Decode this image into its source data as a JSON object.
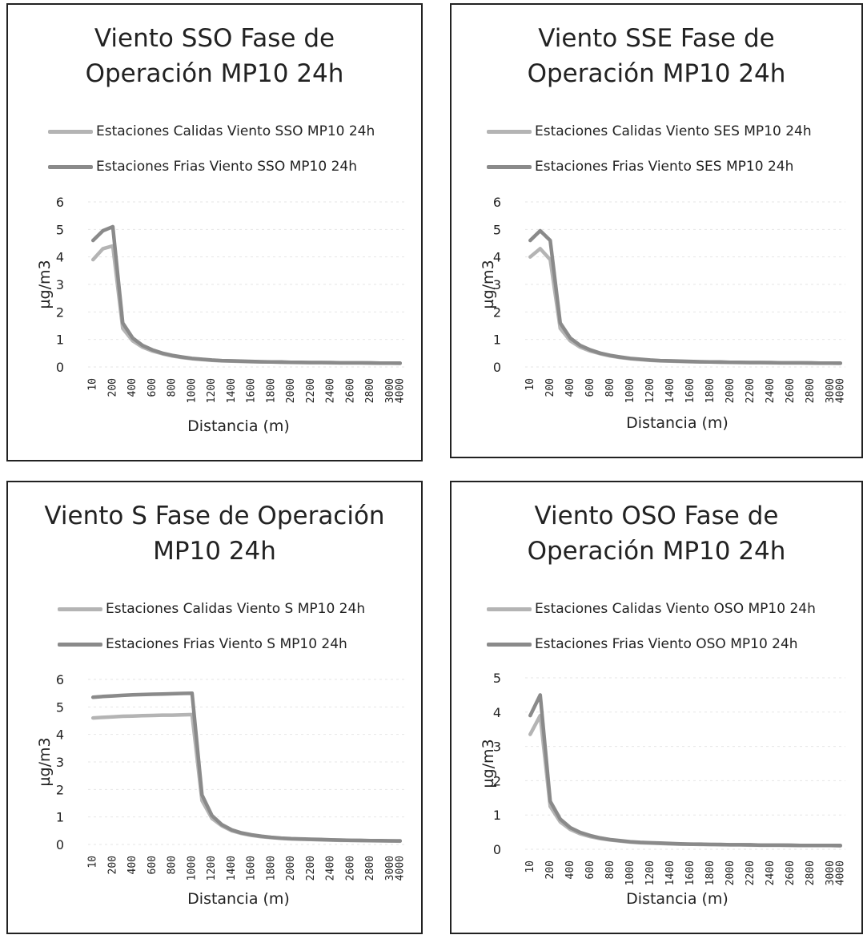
{
  "chart_data": [
    {
      "type": "line",
      "title": "Viento SSO Fase de Operación MP10 24h",
      "xlabel": "Distancia (m)",
      "ylabel": "µg/m3",
      "ylim": [
        0,
        6
      ],
      "yticks": [
        "0",
        "1",
        "2",
        "3",
        "4",
        "5",
        "6"
      ],
      "x": [
        10,
        100,
        200,
        300,
        400,
        500,
        600,
        700,
        800,
        900,
        1000,
        1100,
        1200,
        1300,
        1400,
        1500,
        1600,
        1700,
        1800,
        1900,
        2000,
        2100,
        2200,
        2300,
        2400,
        2500,
        2600,
        2700,
        2800,
        2900,
        3000,
        4000
      ],
      "xticklabels": [
        "10",
        "200",
        "400",
        "600",
        "800",
        "1000",
        "1200",
        "1400",
        "1600",
        "1800",
        "2000",
        "2200",
        "2400",
        "2600",
        "2800",
        "3000",
        "4000"
      ],
      "series": [
        {
          "name": "Estaciones Calidas Viento SSO MP10 24h",
          "color": "#b4b4b4",
          "values": [
            3.9,
            4.3,
            4.4,
            1.4,
            0.95,
            0.72,
            0.58,
            0.48,
            0.4,
            0.34,
            0.3,
            0.27,
            0.24,
            0.22,
            0.21,
            0.2,
            0.19,
            0.18,
            0.18,
            0.17,
            0.17,
            0.16,
            0.16,
            0.16,
            0.15,
            0.15,
            0.15,
            0.15,
            0.14,
            0.14,
            0.14,
            0.13
          ]
        },
        {
          "name": "Estaciones Frias Viento SSO MP10 24h",
          "color": "#8a8a8a",
          "values": [
            4.6,
            4.95,
            5.1,
            1.6,
            1.05,
            0.78,
            0.62,
            0.5,
            0.42,
            0.36,
            0.31,
            0.28,
            0.25,
            0.23,
            0.22,
            0.21,
            0.2,
            0.19,
            0.18,
            0.18,
            0.17,
            0.17,
            0.16,
            0.16,
            0.16,
            0.15,
            0.15,
            0.15,
            0.15,
            0.14,
            0.14,
            0.14
          ]
        }
      ]
    },
    {
      "type": "line",
      "title": "Viento SSE Fase de Operación MP10 24h",
      "xlabel": "Distancia (m)",
      "ylabel": "µg/m3",
      "ylim": [
        0,
        6
      ],
      "yticks": [
        "0",
        "1",
        "2",
        "3",
        "4",
        "5",
        "6"
      ],
      "x": [
        10,
        100,
        200,
        300,
        400,
        500,
        600,
        700,
        800,
        900,
        1000,
        1100,
        1200,
        1300,
        1400,
        1500,
        1600,
        1700,
        1800,
        1900,
        2000,
        2100,
        2200,
        2300,
        2400,
        2500,
        2600,
        2700,
        2800,
        2900,
        3000,
        4000
      ],
      "xticklabels": [
        "10",
        "200",
        "400",
        "600",
        "800",
        "1000",
        "1200",
        "1400",
        "1600",
        "1800",
        "2000",
        "2200",
        "2400",
        "2600",
        "2800",
        "3000",
        "4000"
      ],
      "series": [
        {
          "name": "Estaciones Calidas Viento SES MP10 24h",
          "color": "#b4b4b4",
          "values": [
            4.0,
            4.3,
            3.9,
            1.4,
            0.95,
            0.72,
            0.58,
            0.48,
            0.4,
            0.34,
            0.3,
            0.27,
            0.24,
            0.22,
            0.21,
            0.2,
            0.19,
            0.18,
            0.18,
            0.17,
            0.17,
            0.16,
            0.16,
            0.16,
            0.15,
            0.15,
            0.15,
            0.15,
            0.14,
            0.14,
            0.14,
            0.13
          ]
        },
        {
          "name": "Estaciones Frias Viento SES MP10 24h",
          "color": "#8a8a8a",
          "values": [
            4.6,
            4.95,
            4.6,
            1.6,
            1.05,
            0.78,
            0.62,
            0.5,
            0.42,
            0.36,
            0.31,
            0.28,
            0.25,
            0.23,
            0.22,
            0.21,
            0.2,
            0.19,
            0.18,
            0.18,
            0.17,
            0.17,
            0.16,
            0.16,
            0.16,
            0.15,
            0.15,
            0.15,
            0.15,
            0.14,
            0.14,
            0.14
          ]
        }
      ]
    },
    {
      "type": "line",
      "title": "Viento S Fase de Operación MP10 24h",
      "xlabel": "Distancia (m)",
      "ylabel": "µg/m3",
      "ylim": [
        0,
        6
      ],
      "yticks": [
        "0",
        "1",
        "2",
        "3",
        "4",
        "5",
        "6"
      ],
      "x": [
        10,
        100,
        200,
        300,
        400,
        500,
        600,
        700,
        800,
        900,
        1000,
        1100,
        1200,
        1300,
        1400,
        1500,
        1600,
        1700,
        1800,
        1900,
        2000,
        2100,
        2200,
        2300,
        2400,
        2500,
        2600,
        2700,
        2800,
        2900,
        3000,
        4000
      ],
      "xticklabels": [
        "10",
        "200",
        "400",
        "600",
        "800",
        "1000",
        "1200",
        "1400",
        "1600",
        "1800",
        "2000",
        "2200",
        "2400",
        "2600",
        "2800",
        "3000",
        "4000"
      ],
      "series": [
        {
          "name": "Estaciones Calidas Viento S MP10 24h",
          "color": "#b4b4b4",
          "values": [
            4.6,
            4.62,
            4.64,
            4.66,
            4.67,
            4.68,
            4.69,
            4.7,
            4.7,
            4.71,
            4.72,
            1.6,
            0.95,
            0.68,
            0.5,
            0.4,
            0.33,
            0.28,
            0.25,
            0.22,
            0.2,
            0.19,
            0.18,
            0.17,
            0.16,
            0.15,
            0.15,
            0.14,
            0.14,
            0.13,
            0.13,
            0.12
          ]
        },
        {
          "name": "Estaciones Frias Viento S MP10 24h",
          "color": "#8a8a8a",
          "values": [
            5.35,
            5.38,
            5.4,
            5.42,
            5.44,
            5.45,
            5.46,
            5.47,
            5.48,
            5.49,
            5.5,
            1.8,
            1.05,
            0.72,
            0.53,
            0.42,
            0.35,
            0.3,
            0.26,
            0.23,
            0.21,
            0.2,
            0.19,
            0.18,
            0.17,
            0.16,
            0.15,
            0.15,
            0.14,
            0.14,
            0.13,
            0.13
          ]
        }
      ]
    },
    {
      "type": "line",
      "title": "Viento OSO Fase de Operación MP10 24h",
      "xlabel": "Distancia (m)",
      "ylabel": "µg/m3",
      "ylim": [
        0,
        5
      ],
      "yticks": [
        "0",
        "1",
        "2",
        "3",
        "4",
        "5"
      ],
      "x": [
        10,
        100,
        200,
        300,
        400,
        500,
        600,
        700,
        800,
        900,
        1000,
        1100,
        1200,
        1300,
        1400,
        1500,
        1600,
        1700,
        1800,
        1900,
        2000,
        2100,
        2200,
        2300,
        2400,
        2500,
        2600,
        2700,
        2800,
        2900,
        3000,
        4000
      ],
      "xticklabels": [
        "10",
        "200",
        "400",
        "600",
        "800",
        "1000",
        "1200",
        "1400",
        "1600",
        "1800",
        "2000",
        "2200",
        "2400",
        "2600",
        "2800",
        "3000",
        "4000"
      ],
      "series": [
        {
          "name": "Estaciones Calidas Viento OSO MP10 24h",
          "color": "#b4b4b4",
          "values": [
            3.35,
            3.9,
            1.25,
            0.8,
            0.58,
            0.45,
            0.37,
            0.31,
            0.27,
            0.24,
            0.21,
            0.19,
            0.18,
            0.17,
            0.16,
            0.15,
            0.15,
            0.14,
            0.14,
            0.13,
            0.13,
            0.13,
            0.12,
            0.12,
            0.12,
            0.12,
            0.11,
            0.11,
            0.11,
            0.11,
            0.11,
            0.1
          ]
        },
        {
          "name": "Estaciones Frias Viento OSO MP10 24h",
          "color": "#8a8a8a",
          "values": [
            3.9,
            4.5,
            1.4,
            0.88,
            0.63,
            0.49,
            0.4,
            0.33,
            0.28,
            0.25,
            0.22,
            0.2,
            0.19,
            0.18,
            0.17,
            0.16,
            0.15,
            0.15,
            0.14,
            0.14,
            0.13,
            0.13,
            0.13,
            0.12,
            0.12,
            0.12,
            0.12,
            0.11,
            0.11,
            0.11,
            0.11,
            0.11
          ]
        }
      ]
    }
  ]
}
